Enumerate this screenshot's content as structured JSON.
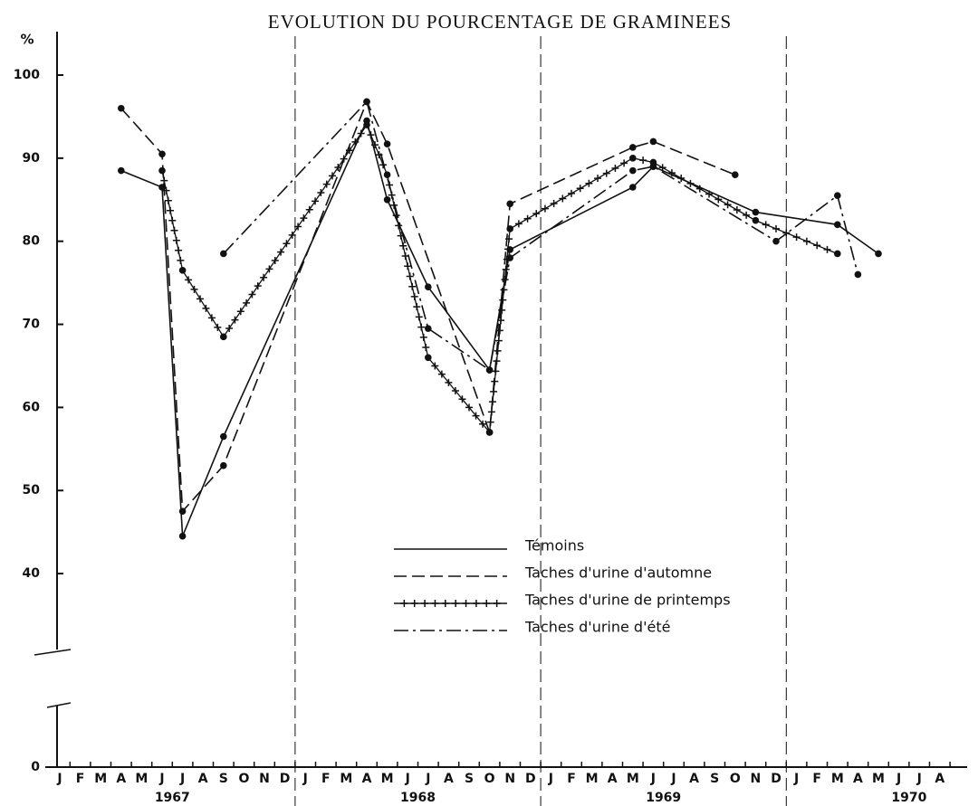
{
  "chart_data": {
    "type": "line",
    "title": "EVOLUTION DU POURCENTAGE DE GRAMINEES",
    "y_label": "%",
    "months": [
      "J",
      "F",
      "M",
      "A",
      "M",
      "J",
      "J",
      "A",
      "S",
      "O",
      "N",
      "D",
      "J",
      "F",
      "M",
      "A",
      "M",
      "J",
      "J",
      "A",
      "S",
      "O",
      "N",
      "D",
      "J",
      "F",
      "M",
      "A",
      "M",
      "J",
      "J",
      "A",
      "S",
      "O",
      "N",
      "D",
      "J",
      "F",
      "M",
      "A",
      "M",
      "J",
      "J",
      "A"
    ],
    "years": [
      "1967",
      "1968",
      "1969",
      "1970"
    ],
    "ylim": [
      0,
      100
    ],
    "axis_break": [
      0,
      35
    ],
    "yticks": [
      0,
      40,
      50,
      60,
      70,
      80,
      90,
      100
    ],
    "series": [
      {
        "name": "Témoins",
        "style": "solid",
        "color": "#111111",
        "x": [
          "1967-04",
          "1967-06",
          "1967-07",
          "1967-09",
          "1968-04",
          "1968-05",
          "1968-07",
          "1968-10",
          "1968-11",
          "1969-05",
          "1969-06",
          "1969-11",
          "1970-03",
          "1970-05"
        ],
        "values": [
          88.5,
          86.5,
          44.5,
          56.5,
          94.5,
          85,
          74.5,
          64.5,
          79,
          86.5,
          89,
          83.5,
          82,
          78.5
        ]
      },
      {
        "name": "Taches d'urine d'automne",
        "style": "dashed",
        "color": "#111111",
        "x": [
          "1967-04",
          "1967-06",
          "1967-07",
          "1967-09",
          "1968-04",
          "1968-05",
          "1968-10",
          "1968-11",
          "1969-05",
          "1969-06",
          "1969-10"
        ],
        "values": [
          96,
          90.5,
          47.5,
          53,
          96.8,
          91.7,
          57,
          84.5,
          91.3,
          92,
          88
        ]
      },
      {
        "name": "Taches d'urine de printemps",
        "style": "plus",
        "color": "#111111",
        "x": [
          "1967-06",
          "1967-07",
          "1967-09",
          "1968-04",
          "1968-05",
          "1968-07",
          "1968-10",
          "1968-11",
          "1969-05",
          "1969-06",
          "1969-11",
          "1970-03"
        ],
        "values": [
          88.5,
          76.5,
          68.5,
          94,
          88,
          66,
          57,
          81.5,
          90,
          89.5,
          82.5,
          78.5
        ]
      },
      {
        "name": "Taches d'urine d'été",
        "style": "dashdot",
        "color": "#111111",
        "x": [
          "1967-09",
          "1968-04",
          "1968-07",
          "1968-10",
          "1968-11",
          "1969-05",
          "1969-06",
          "1969-12",
          "1970-03",
          "1970-04"
        ],
        "values": [
          78.5,
          96.8,
          69.5,
          64.5,
          78,
          88.5,
          89,
          80,
          85.5,
          76
        ]
      }
    ]
  }
}
